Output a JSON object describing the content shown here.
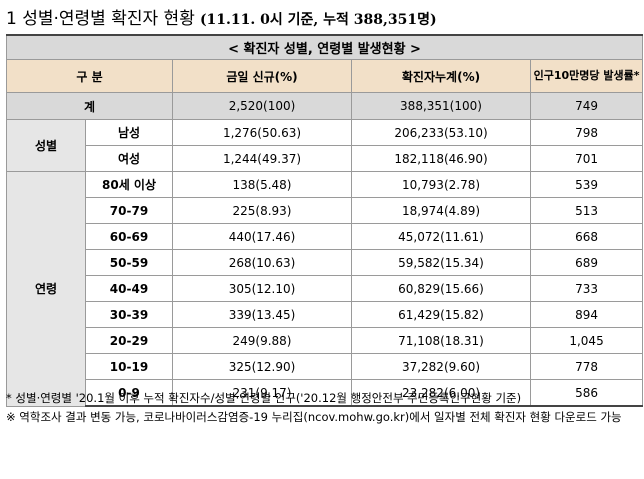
{
  "title": {
    "main": "1 성별·연령별 확진자 현황",
    "sub": "(11.11. 0시 기준, 누적 388,351명)"
  },
  "table": {
    "caption": "< 확진자 성별, 연령별 발생현황 >",
    "headers": {
      "col1": "구 분",
      "col2": "금일 신규(%)",
      "col3": "확진자누계(%)",
      "col4": "인구10만명당 발생률*"
    },
    "total": {
      "label": "계",
      "new": "2,520(100)",
      "cum": "388,351(100)",
      "rate": "749"
    },
    "gender_label": "성별",
    "gender": [
      {
        "label": "남성",
        "new": "1,276(50.63)",
        "cum": "206,233(53.10)",
        "rate": "798"
      },
      {
        "label": "여성",
        "new": "1,244(49.37)",
        "cum": "182,118(46.90)",
        "rate": "701"
      }
    ],
    "age_label": "연령",
    "age": [
      {
        "label": "80세 이상",
        "new": "138(5.48)",
        "cum": "10,793(2.78)",
        "rate": "539"
      },
      {
        "label": "70-79",
        "new": "225(8.93)",
        "cum": "18,974(4.89)",
        "rate": "513"
      },
      {
        "label": "60-69",
        "new": "440(17.46)",
        "cum": "45,072(11.61)",
        "rate": "668"
      },
      {
        "label": "50-59",
        "new": "268(10.63)",
        "cum": "59,582(15.34)",
        "rate": "689"
      },
      {
        "label": "40-49",
        "new": "305(12.10)",
        "cum": "60,829(15.66)",
        "rate": "733"
      },
      {
        "label": "30-39",
        "new": "339(13.45)",
        "cum": "61,429(15.82)",
        "rate": "894"
      },
      {
        "label": "20-29",
        "new": "249(9.88)",
        "cum": "71,108(18.31)",
        "rate": "1,045"
      },
      {
        "label": "10-19",
        "new": "325(12.90)",
        "cum": "37,282(9.60)",
        "rate": "778"
      },
      {
        "label": "0-9",
        "new": "231(9.17)",
        "cum": "23,282(6.00)",
        "rate": "586"
      }
    ]
  },
  "notes": [
    "* 성별·연령별 '20.1월 이후 누적 확진자수/성별·연령별 인구('20.12월 행정안전부 주민등록인구현황 기준)",
    "※ 역학조사 결과 변동 가능, 코로나바이러스감염증-19 누리집(ncov.mohw.go.kr)에서 일자별 전체 확진자 현황 다운로드 가능"
  ]
}
